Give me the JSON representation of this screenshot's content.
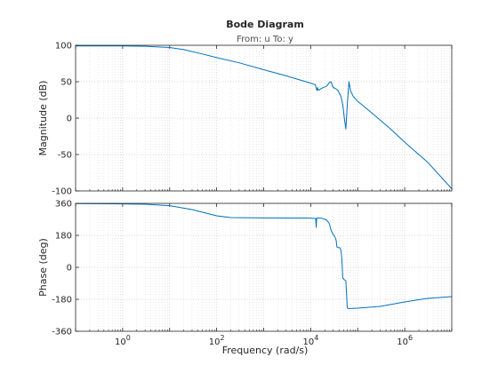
{
  "chart_data": {
    "type": "line",
    "title": "Bode Diagram",
    "subtitle": "From: u  To: y",
    "xlabel": "Frequency  (rad/s)",
    "xscale": "log",
    "xlim": [
      0.1,
      10000000
    ],
    "xticks": [
      "10^0",
      "10^2",
      "10^4",
      "10^6"
    ],
    "grid": true,
    "line_color": "#0072bd",
    "panels": [
      {
        "ylabel": "Magnitude (dB)",
        "ylim": [
          -100,
          100
        ],
        "yticks": [
          "100",
          "50",
          "0",
          "-50",
          "-100"
        ],
        "series": [
          {
            "x": [
              0.1,
              1,
              3,
              10,
              20,
              50,
              100,
              300,
              1000,
              3000,
              10000,
              12500,
              13500,
              14000,
              14500,
              17000,
              22000,
              25000,
              27000,
              30000,
              33000,
              38000,
              44000,
              48000,
              50000,
              52000,
              56000,
              60000,
              65000,
              70000,
              80000,
              100000,
              200000,
              500000,
              1000000,
              3000000,
              10000000
            ],
            "y": [
              99,
              99,
              98.7,
              97,
              94,
              88,
              83,
              76,
              66.5,
              58,
              48,
              46,
              38,
              42,
              38,
              41,
              44,
              49,
              50,
              42,
              41,
              38,
              30,
              18,
              10,
              0,
              -15,
              18,
              50,
              38,
              30,
              23,
              7,
              -15,
              -33,
              -60,
              -97
            ]
          }
        ]
      },
      {
        "ylabel": "Phase (deg)",
        "ylim": [
          -360,
          360
        ],
        "yticks": [
          "360",
          "180",
          "0",
          "-180",
          "-360"
        ],
        "series": [
          {
            "x": [
              0.1,
              1,
              3,
              10,
              30,
              100,
              200,
              1000,
              10000,
              12800,
              13100,
              13400,
              14000,
              15000,
              17000,
              20000,
              22000,
              25000,
              27000,
              30000,
              33000,
              35000,
              36000,
              38000,
              42000,
              44000,
              46000,
              48000,
              52000,
              56000,
              60000,
              62000,
              70000,
              100000,
              300000,
              1000000,
              3000000,
              10000000
            ],
            "y": [
              359,
              357,
              355,
              347,
              325,
              290,
              280,
              278,
              277,
              275,
              225,
              277,
              278,
              278,
              276,
              270,
              265,
              245,
              210,
              185,
              170,
              150,
              115,
              112,
              110,
              95,
              50,
              -60,
              -70,
              -75,
              -228,
              -232,
              -232,
              -230,
              -220,
              -195,
              -175,
              -165
            ]
          }
        ]
      }
    ]
  }
}
